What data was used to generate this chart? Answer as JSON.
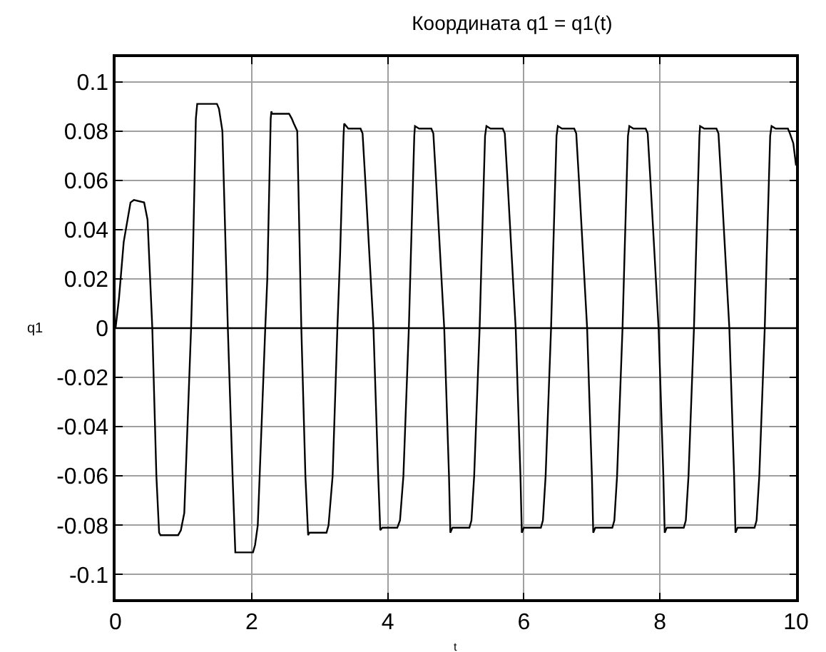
{
  "chart_data": {
    "type": "line",
    "title": "Координата q1 = q1(t)",
    "xlabel": "t",
    "ylabel": "q1",
    "x": [
      0,
      0.05,
      0.12,
      0.22,
      0.27,
      0.42,
      0.47,
      0.54,
      0.6,
      0.64,
      0.66,
      0.92,
      0.96,
      1.01,
      1.11,
      1.13,
      1.18,
      1.2,
      1.49,
      1.52,
      1.57,
      1.65,
      1.72,
      1.76,
      2.02,
      2.05,
      2.09,
      2.2,
      2.23,
      2.28,
      2.29,
      2.3,
      2.55,
      2.59,
      2.62,
      2.67,
      2.73,
      2.79,
      2.83,
      2.85,
      3.1,
      3.13,
      3.19,
      3.26,
      3.3,
      3.35,
      3.36,
      3.42,
      3.6,
      3.63,
      3.67,
      3.79,
      3.86,
      3.89,
      3.92,
      4.14,
      4.18,
      4.23,
      4.31,
      4.34,
      4.39,
      4.4,
      4.46,
      4.64,
      4.67,
      4.71,
      4.83,
      4.9,
      4.92,
      4.95,
      5.2,
      5.23,
      5.27,
      5.35,
      5.38,
      5.43,
      5.45,
      5.51,
      5.69,
      5.72,
      5.76,
      5.88,
      5.95,
      5.97,
      6.0,
      6.25,
      6.28,
      6.32,
      6.4,
      6.43,
      6.48,
      6.5,
      6.56,
      6.74,
      6.77,
      6.81,
      6.93,
      7.0,
      7.02,
      7.05,
      7.3,
      7.33,
      7.37,
      7.45,
      7.48,
      7.53,
      7.55,
      7.61,
      7.79,
      7.82,
      7.86,
      7.98,
      8.05,
      8.07,
      8.1,
      8.35,
      8.38,
      8.42,
      8.5,
      8.53,
      8.58,
      8.59,
      8.65,
      8.83,
      8.86,
      8.9,
      9.02,
      9.09,
      9.11,
      9.14,
      9.39,
      9.42,
      9.46,
      9.54,
      9.57,
      9.62,
      9.64,
      9.7,
      9.88,
      9.91,
      9.96,
      10.0
    ],
    "series": [
      {
        "color": "#000000",
        "values": [
          0,
          0.012,
          0.035,
          0.051,
          0.052,
          0.051,
          0.044,
          0,
          -0.06,
          -0.083,
          -0.084,
          -0.084,
          -0.082,
          -0.075,
          0,
          0.02,
          0.085,
          0.091,
          0.091,
          0.089,
          0.08,
          0,
          -0.06,
          -0.091,
          -0.091,
          -0.088,
          -0.08,
          0,
          0.02,
          0.085,
          0.088,
          0.087,
          0.087,
          0.085,
          0.083,
          0.08,
          0,
          -0.06,
          -0.084,
          -0.083,
          -0.083,
          -0.08,
          -0.06,
          0,
          0.03,
          0.078,
          0.083,
          0.081,
          0.081,
          0.079,
          0.06,
          0,
          -0.06,
          -0.082,
          -0.081,
          -0.081,
          -0.078,
          -0.06,
          0,
          0.03,
          0.078,
          0.082,
          0.081,
          0.081,
          0.079,
          0.06,
          0,
          -0.06,
          -0.083,
          -0.081,
          -0.081,
          -0.078,
          -0.06,
          0,
          0.03,
          0.078,
          0.082,
          0.081,
          0.081,
          0.079,
          0.06,
          0,
          -0.06,
          -0.083,
          -0.081,
          -0.081,
          -0.078,
          -0.06,
          0,
          0.03,
          0.078,
          0.082,
          0.081,
          0.081,
          0.079,
          0.06,
          0,
          -0.06,
          -0.083,
          -0.081,
          -0.081,
          -0.078,
          -0.06,
          0,
          0.03,
          0.078,
          0.082,
          0.081,
          0.081,
          0.079,
          0.06,
          0,
          -0.06,
          -0.083,
          -0.081,
          -0.081,
          -0.078,
          -0.06,
          0,
          0.03,
          0.078,
          0.082,
          0.081,
          0.081,
          0.079,
          0.06,
          0,
          -0.06,
          -0.083,
          -0.081,
          -0.081,
          -0.078,
          -0.06,
          0,
          0.03,
          0.078,
          0.082,
          0.081,
          0.081,
          0.079,
          0.075,
          0.066
        ]
      }
    ],
    "xlim": [
      0,
      10
    ],
    "xticks": [
      0,
      2,
      4,
      6,
      8,
      10
    ],
    "ylim": [
      -0.11,
      0.11
    ],
    "yticks": [
      -0.1,
      -0.08,
      -0.06,
      -0.04,
      -0.02,
      0,
      0.02,
      0.04,
      0.06,
      0.08,
      0.1
    ],
    "ref_lines": [
      {
        "axis": "y",
        "value": 0,
        "color": "#000000"
      }
    ],
    "grid": true,
    "marker": "none",
    "line_style": "solid"
  }
}
